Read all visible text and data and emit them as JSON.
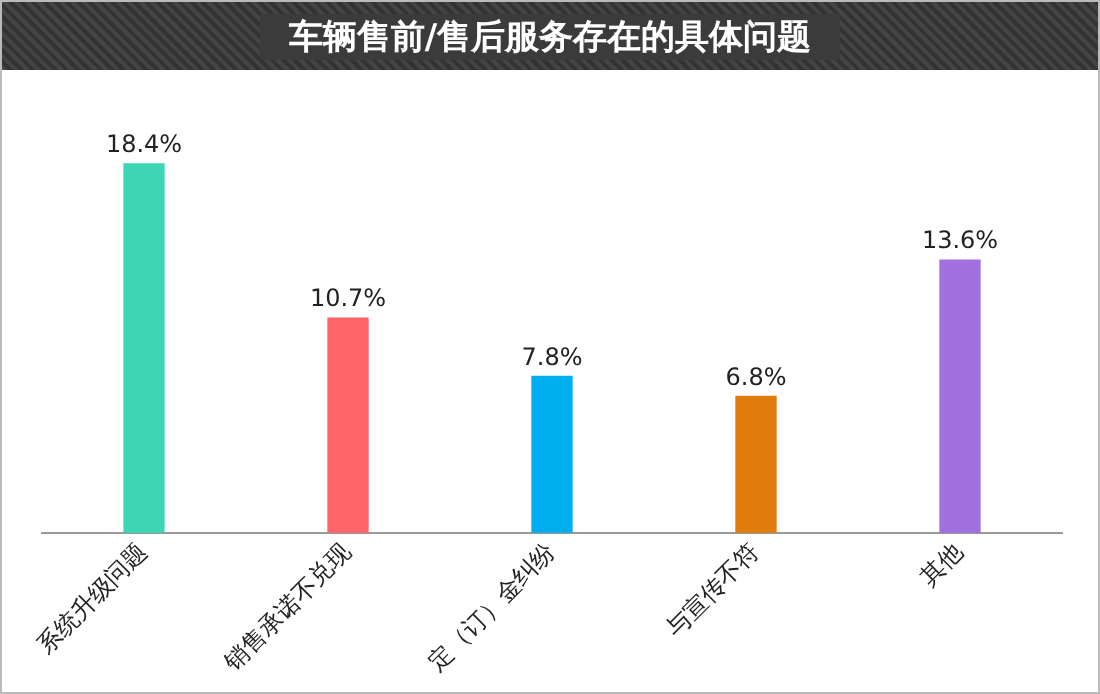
{
  "chart_data": {
    "type": "bar",
    "title": "车辆售前/售后服务存在的具体问题",
    "categories": [
      "系统升级问题",
      "销售承诺不兑现",
      "定（订）金纠纷",
      "与宣传不符",
      "其他"
    ],
    "values": [
      18.4,
      10.7,
      7.8,
      6.8,
      13.6
    ],
    "value_labels": [
      "18.4%",
      "10.7%",
      "7.8%",
      "6.8%",
      "13.6%"
    ],
    "colors": [
      "#3dd6b5",
      "#ff6469",
      "#00aeef",
      "#e07b0c",
      "#a070e0"
    ],
    "grid": false,
    "legend": false
  }
}
